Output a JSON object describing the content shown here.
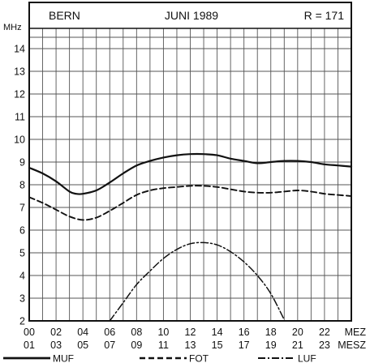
{
  "header": {
    "station": "BERN",
    "period": "JUNI 1989",
    "index": "R = 171"
  },
  "chart_data": {
    "type": "line",
    "ylabel": "MHz",
    "ylim": [
      2,
      15
    ],
    "xlim": [
      0,
      24
    ],
    "grid": true,
    "y_ticks": [
      "2",
      "3",
      "4",
      "5",
      "6",
      "7",
      "8",
      "9",
      "10",
      "11",
      "12",
      "13",
      "14"
    ],
    "x_ticks_top": [
      "00",
      "02",
      "04",
      "06",
      "08",
      "10",
      "12",
      "14",
      "16",
      "18",
      "20",
      "22"
    ],
    "x_ticks_bottom": [
      "01",
      "03",
      "05",
      "07",
      "09",
      "11",
      "13",
      "15",
      "17",
      "19",
      "21",
      "23"
    ],
    "x_unit_top": "MEZ",
    "x_unit_bottom": "MESZ",
    "series": [
      {
        "name": "MUF",
        "style": "solid",
        "color": "#111111",
        "x": [
          0,
          1,
          2,
          3,
          3.5,
          4,
          5,
          6,
          7,
          8,
          9,
          10,
          11,
          12,
          13,
          14,
          15,
          16,
          17,
          18,
          19,
          20,
          21,
          22,
          23,
          24
        ],
        "y": [
          8.75,
          8.5,
          8.15,
          7.7,
          7.6,
          7.6,
          7.75,
          8.1,
          8.5,
          8.85,
          9.05,
          9.2,
          9.3,
          9.35,
          9.35,
          9.3,
          9.15,
          9.05,
          8.95,
          9.0,
          9.05,
          9.05,
          9.0,
          8.9,
          8.85,
          8.8
        ]
      },
      {
        "name": "FOT",
        "style": "dashed",
        "color": "#111111",
        "x": [
          0,
          1,
          2,
          3,
          4,
          5,
          6,
          7,
          8,
          9,
          10,
          11,
          12,
          13,
          14,
          15,
          16,
          17,
          18,
          19,
          20,
          21,
          22,
          23,
          24
        ],
        "y": [
          7.45,
          7.2,
          6.9,
          6.6,
          6.45,
          6.55,
          6.85,
          7.2,
          7.55,
          7.75,
          7.85,
          7.9,
          7.95,
          7.95,
          7.9,
          7.8,
          7.7,
          7.65,
          7.65,
          7.7,
          7.75,
          7.7,
          7.6,
          7.55,
          7.5
        ]
      },
      {
        "name": "LUF",
        "style": "dashdot",
        "color": "#111111",
        "x": [
          6,
          7,
          8,
          9,
          10,
          11,
          12,
          13,
          14,
          15,
          16,
          17,
          18,
          19
        ],
        "y": [
          2.0,
          2.8,
          3.6,
          4.2,
          4.75,
          5.15,
          5.4,
          5.45,
          5.35,
          5.05,
          4.6,
          4.0,
          3.2,
          2.05
        ]
      }
    ]
  }
}
